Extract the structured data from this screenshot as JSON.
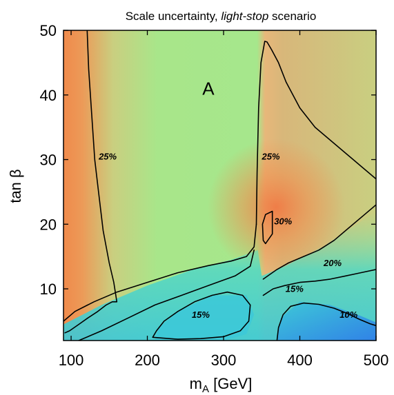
{
  "chart_data": {
    "type": "heatmap",
    "title": {
      "prefix": "Scale uncertainty, ",
      "emphasis": "light-stop",
      "suffix": " scenario"
    },
    "xlabel": {
      "main": "m",
      "sub": "A",
      "unit": " [GeV]"
    },
    "ylabel": "tan β",
    "xlim": [
      90,
      500
    ],
    "ylim": [
      2,
      50
    ],
    "xticks": [
      100,
      200,
      300,
      400,
      500
    ],
    "yticks": [
      10,
      20,
      30,
      40,
      50
    ],
    "colors": {
      "orange": "#f08a4b",
      "green": "#a8e68a",
      "olive": "#c9cf80",
      "cyan": "#3cc8d8",
      "blue": "#2f7fe8"
    },
    "region_label": {
      "text": "A",
      "x": 280,
      "y": 41
    },
    "contour_labels": [
      {
        "text": "25%",
        "x": 148,
        "y": 30
      },
      {
        "text": "25%",
        "x": 362,
        "y": 30
      },
      {
        "text": "30%",
        "x": 378,
        "y": 20
      },
      {
        "text": "20%",
        "x": 443,
        "y": 13.5
      },
      {
        "text": "15%",
        "x": 393,
        "y": 9.5
      },
      {
        "text": "15%",
        "x": 270,
        "y": 5.5
      },
      {
        "text": "10%",
        "x": 464,
        "y": 5.5
      }
    ],
    "contours": [
      {
        "name": "c25-left",
        "points": [
          [
            121,
            50
          ],
          [
            123,
            44
          ],
          [
            127,
            37
          ],
          [
            131,
            30
          ],
          [
            136,
            25
          ],
          [
            142,
            19
          ],
          [
            150,
            14
          ],
          [
            156,
            11
          ],
          [
            160,
            8
          ],
          [
            154,
            8
          ],
          [
            146,
            7.5
          ],
          [
            135,
            6.5
          ],
          [
            122,
            5.5
          ],
          [
            110,
            4.5
          ],
          [
            98,
            3.5
          ],
          [
            92,
            3.2
          ]
        ]
      },
      {
        "name": "c25-right",
        "points": [
          [
            343,
            20
          ],
          [
            344,
            28
          ],
          [
            346,
            38
          ],
          [
            349,
            45
          ],
          [
            354,
            48.3
          ],
          [
            357,
            48.2
          ],
          [
            363,
            47
          ],
          [
            372,
            45
          ],
          [
            382,
            42
          ],
          [
            400,
            38
          ],
          [
            420,
            35
          ],
          [
            440,
            33
          ],
          [
            460,
            31
          ],
          [
            480,
            29
          ],
          [
            500,
            27
          ]
        ]
      },
      {
        "name": "c30",
        "points": [
          [
            352,
            17.5
          ],
          [
            351,
            20
          ],
          [
            355,
            21.5
          ],
          [
            364,
            22
          ],
          [
            364,
            18.5
          ],
          [
            355,
            17
          ],
          [
            352,
            17.5
          ]
        ]
      },
      {
        "name": "c20",
        "points": [
          [
            352,
            11.5
          ],
          [
            370,
            13
          ],
          [
            385,
            14
          ],
          [
            405,
            15
          ],
          [
            425,
            16
          ],
          [
            445,
            17.5
          ],
          [
            465,
            19.5
          ],
          [
            485,
            21.5
          ],
          [
            500,
            23
          ]
        ]
      },
      {
        "name": "c15-right",
        "points": [
          [
            352,
            9
          ],
          [
            365,
            10
          ],
          [
            380,
            10.5
          ],
          [
            400,
            11
          ],
          [
            420,
            11.2
          ],
          [
            440,
            11.5
          ],
          [
            460,
            12
          ],
          [
            480,
            12.5
          ],
          [
            500,
            13
          ]
        ]
      },
      {
        "name": "c15-low-island",
        "points": [
          [
            207,
            2.5
          ],
          [
            212,
            3.5
          ],
          [
            222,
            5
          ],
          [
            240,
            6.5
          ],
          [
            262,
            8
          ],
          [
            285,
            9
          ],
          [
            305,
            9.5
          ],
          [
            325,
            9
          ],
          [
            335,
            7.5
          ],
          [
            333,
            5
          ],
          [
            322,
            3.5
          ],
          [
            300,
            2.6
          ],
          [
            270,
            2.3
          ],
          [
            240,
            2.2
          ],
          [
            207,
            2.5
          ]
        ]
      },
      {
        "name": "c10",
        "points": [
          [
            370,
            2
          ],
          [
            372,
            4
          ],
          [
            378,
            6
          ],
          [
            388,
            7.3
          ],
          [
            405,
            7.8
          ],
          [
            425,
            7.6
          ],
          [
            445,
            7
          ],
          [
            462,
            6.2
          ],
          [
            478,
            5.3
          ],
          [
            492,
            4.6
          ],
          [
            500,
            4.3
          ]
        ]
      },
      {
        "name": "c25-lower",
        "points": [
          [
            88,
            4.8
          ],
          [
            105,
            6.5
          ],
          [
            130,
            8
          ],
          [
            160,
            9.5
          ],
          [
            200,
            11
          ],
          [
            240,
            12.5
          ],
          [
            280,
            13.6
          ],
          [
            310,
            14.3
          ],
          [
            330,
            15
          ],
          [
            340,
            16.5
          ],
          [
            343,
            20
          ]
        ]
      },
      {
        "name": "c20-lower",
        "points": [
          [
            110,
            2
          ],
          [
            140,
            3.5
          ],
          [
            175,
            5.5
          ],
          [
            210,
            7.5
          ],
          [
            245,
            9
          ],
          [
            280,
            10.5
          ],
          [
            315,
            12
          ],
          [
            335,
            13.5
          ],
          [
            340,
            16
          ]
        ]
      }
    ]
  }
}
